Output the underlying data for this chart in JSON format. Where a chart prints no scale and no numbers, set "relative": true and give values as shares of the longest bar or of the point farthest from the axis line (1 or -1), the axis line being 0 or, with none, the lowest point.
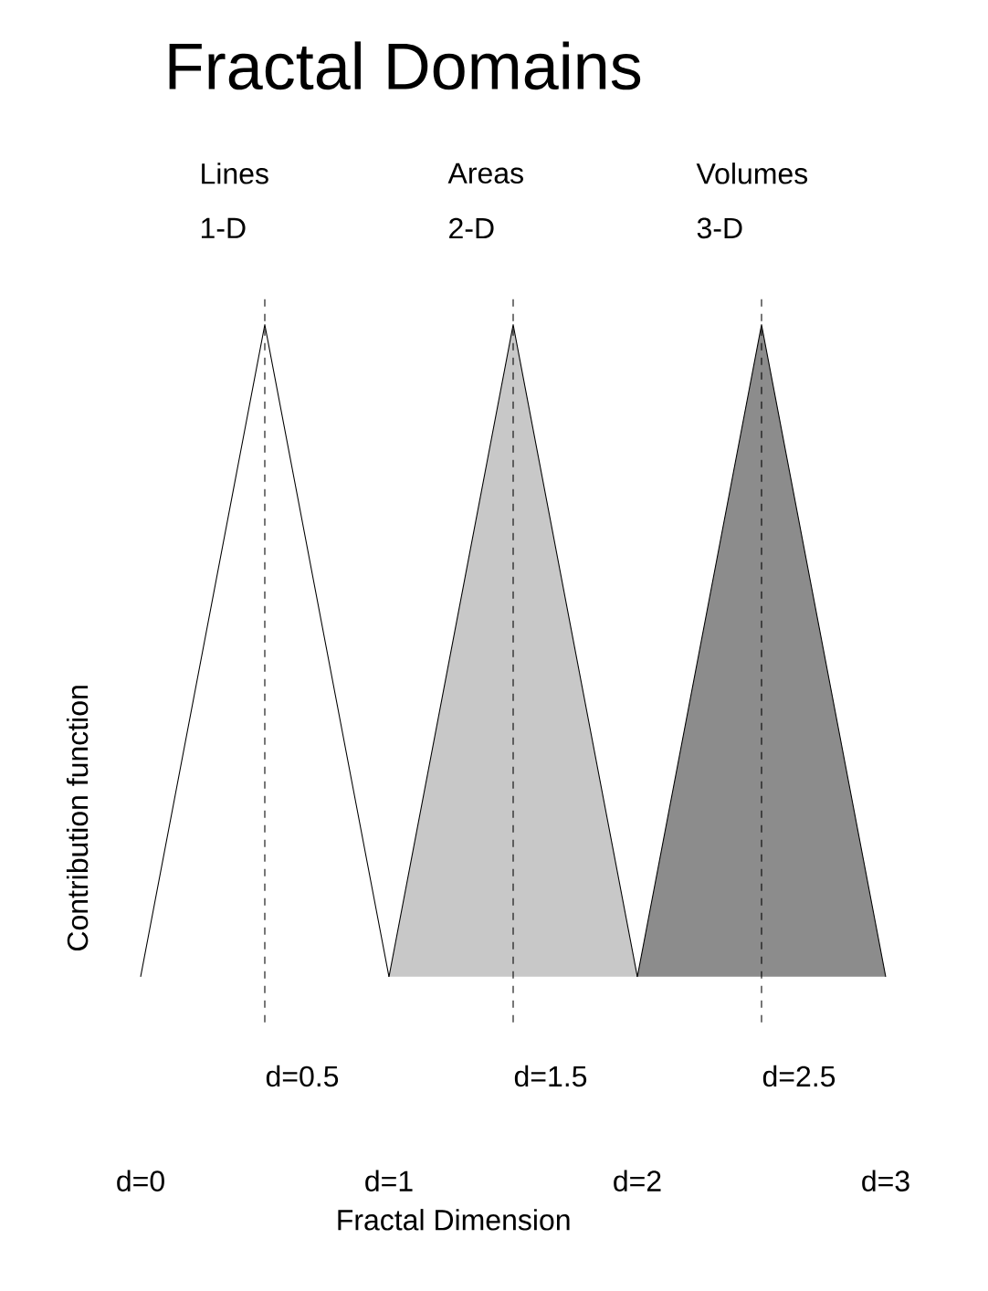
{
  "chart_data": {
    "type": "area",
    "title": "Fractal Domains",
    "xlabel": "Fractal Dimension",
    "ylabel": "Contribution function",
    "relative": true,
    "xlim": [
      0,
      3
    ],
    "xticks": [
      {
        "value": 0,
        "label": "d=0"
      },
      {
        "value": 1,
        "label": "d=1"
      },
      {
        "value": 2,
        "label": "d=2"
      },
      {
        "value": 3,
        "label": "d=3"
      }
    ],
    "series": [
      {
        "color": "#ffffff",
        "x": [
          0,
          0.5,
          1
        ],
        "values": [
          0,
          1,
          0
        ]
      },
      {
        "color": "#c8c8c8",
        "x": [
          1,
          1.5,
          2
        ],
        "values": [
          0,
          1,
          0
        ]
      },
      {
        "color": "#8c8c8c",
        "x": [
          2,
          2.5,
          3
        ],
        "values": [
          0,
          1,
          0
        ]
      }
    ],
    "ref_lines": [
      {
        "axis": "x",
        "value": 0.5,
        "label": "1-D",
        "line_style": "dashed"
      },
      {
        "axis": "x",
        "value": 1.5,
        "label": "2-D",
        "line_style": "dashed"
      },
      {
        "axis": "x",
        "value": 2.5,
        "label": "3-D",
        "line_style": "dashed"
      }
    ],
    "annotations": [
      "Lines",
      "Areas",
      "Volumes",
      "d=0.5",
      "d=1.5",
      "d=2.5"
    ]
  }
}
